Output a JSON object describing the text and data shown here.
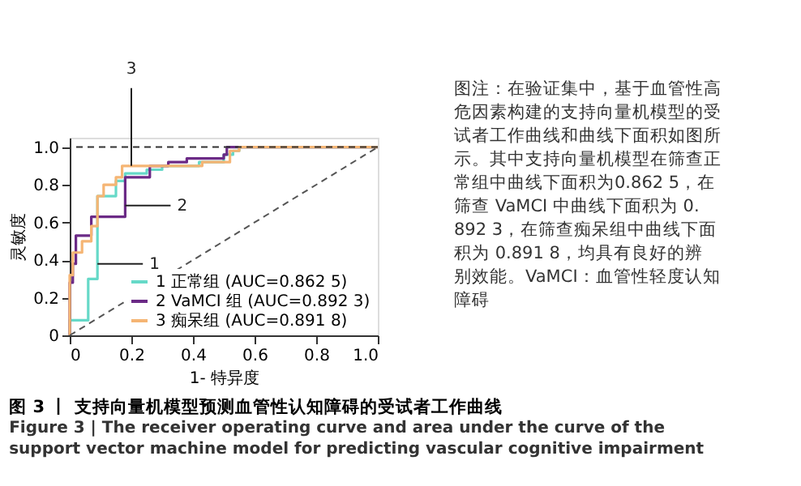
{
  "chart_data": {
    "type": "step",
    "title": "图 3 丨 支持向量机模型预测血管性认知障碍的受试者工作曲线",
    "subtitle": "Figure 3  |  The receiver operating curve and area under the curve of the support vector machine model for predicting vascular cognitive impairment",
    "xlabel": "1- 特异度",
    "ylabel": "灵敏度",
    "xlim": [
      0,
      1
    ],
    "ylim": [
      0,
      1.05
    ],
    "xticks": [
      0,
      0.2,
      0.4,
      0.6,
      0.8,
      {
        "value": 1,
        "label": "1.0"
      }
    ],
    "yticks": [
      0,
      0.2,
      0.4,
      0.6,
      0.8,
      {
        "value": 1,
        "label": "1.0"
      }
    ],
    "grid": false,
    "legend": "bottom right",
    "marker": "none",
    "series": [
      {
        "name": "1 正常组 (AUC=0.862 5)",
        "color": "#66d9c8",
        "x": [
          0,
          0,
          0.06,
          0.09,
          0.15,
          0.18,
          0.25,
          0.3,
          0.42,
          0.5,
          0.53,
          0.55,
          1
        ],
        "values": [
          0,
          0.08,
          0.3,
          0.74,
          0.82,
          0.86,
          0.88,
          0.9,
          0.92,
          0.96,
          0.98,
          1,
          1
        ]
      },
      {
        "name": "2 VaMCI 组 (AUC=0.892 3)",
        "color": "#6b2a86",
        "x": [
          0,
          0,
          0.01,
          0.02,
          0.07,
          0.18,
          0.26,
          0.32,
          0.38,
          0.5,
          0.51,
          1
        ],
        "values": [
          0,
          0.28,
          0.38,
          0.53,
          0.63,
          0.84,
          0.9,
          0.92,
          0.94,
          0.96,
          1,
          1
        ]
      },
      {
        "name": "3 痴呆组 (AUC=0.891 8)",
        "color": "#f5b574",
        "x": [
          0,
          0,
          0.01,
          0.04,
          0.07,
          0.09,
          0.11,
          0.15,
          0.17,
          0.43,
          0.52,
          0.55,
          1
        ],
        "values": [
          0,
          0.32,
          0.44,
          0.5,
          0.58,
          0.74,
          0.8,
          0.84,
          0.9,
          0.92,
          0.98,
          1,
          1
        ]
      },
      {
        "type": "line",
        "color": "#555555",
        "line_style": "dashed",
        "x": [
          0,
          1
        ],
        "values": [
          0,
          1
        ]
      }
    ],
    "ref_lines": [
      {
        "axis": "y",
        "value": 1,
        "color": "#333333",
        "line_style": "dashed"
      }
    ],
    "annotations": [
      {
        "text": "1",
        "x": 0.09,
        "y": 0.38
      },
      {
        "text": "2",
        "x": 0.18,
        "y": 0.69
      },
      {
        "text": "3",
        "x": 0.2,
        "y": 0.9
      },
      "图注：在验证集中，基于血管性高危因素构建的支持向量机模型的受试者工作曲线和曲线下面积如图所示。其中支持向量机模型在筛查正常组中曲线下面积为0.862 5，在筛查 VaMCI 中曲线下面积为 0.892 3，在筛查痴呆组中曲线下面积为 0.891 8，均具有良好的辨别效能。VaMCI：血管性轻度认知障碍"
    ]
  }
}
